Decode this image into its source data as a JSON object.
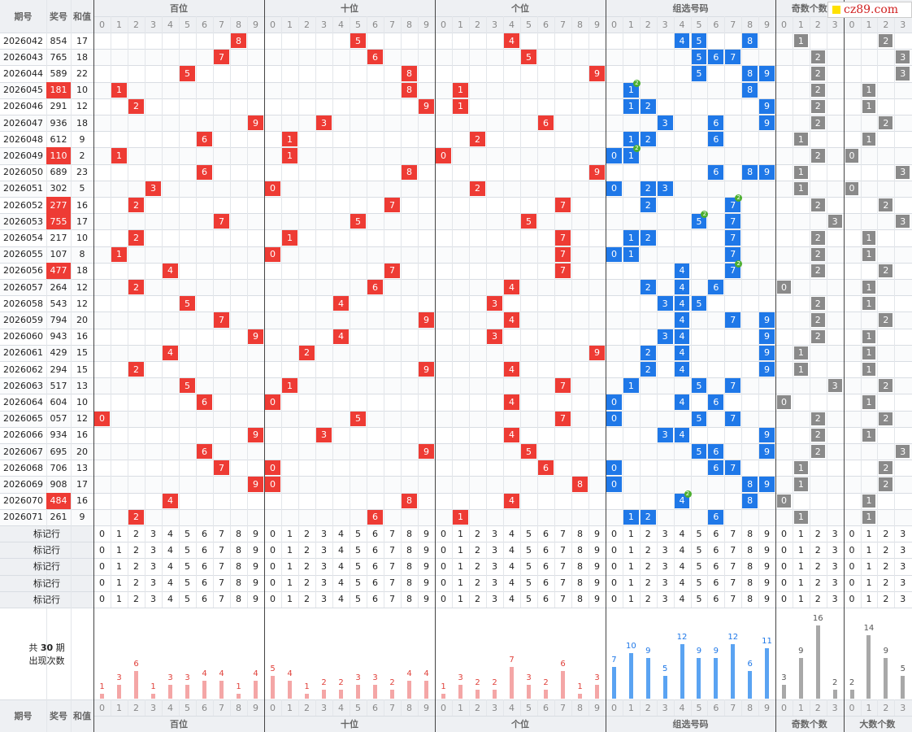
{
  "header": {
    "period": "期号",
    "prize": "奖号",
    "sum": "和值",
    "group_titles": [
      "百位",
      "十位",
      "个位",
      "组选号码",
      "奇数个数",
      "大数个数"
    ]
  },
  "watermark": "cz89.com",
  "mark_row_label": "标记行",
  "stats_prefix": "共",
  "stats_period_count": "30",
  "stats_period_unit": "期",
  "stats_label": "出现次数",
  "colors": {
    "red": "#ee3b34",
    "blue": "#1f78e8",
    "gray": "#8a8a8a",
    "repeat_badge": "#4caf2e"
  },
  "chart_data": {
    "type": "table",
    "rows": [
      {
        "period": "2026042",
        "number": "854",
        "sum": 17,
        "odd_count": 1,
        "big_count": 2
      },
      {
        "period": "2026043",
        "number": "765",
        "sum": 18,
        "odd_count": 2,
        "big_count": 3
      },
      {
        "period": "2026044",
        "number": "589",
        "sum": 22,
        "odd_count": 2,
        "big_count": 3
      },
      {
        "period": "2026045",
        "number": "181",
        "sum": 10,
        "odd_count": 2,
        "big_count": 1
      },
      {
        "period": "2026046",
        "number": "291",
        "sum": 12,
        "odd_count": 2,
        "big_count": 1
      },
      {
        "period": "2026047",
        "number": "936",
        "sum": 18,
        "odd_count": 2,
        "big_count": 2
      },
      {
        "period": "2026048",
        "number": "612",
        "sum": 9,
        "odd_count": 1,
        "big_count": 1
      },
      {
        "period": "2026049",
        "number": "110",
        "sum": 2,
        "odd_count": 2,
        "big_count": 0
      },
      {
        "period": "2026050",
        "number": "689",
        "sum": 23,
        "odd_count": 1,
        "big_count": 3
      },
      {
        "period": "2026051",
        "number": "302",
        "sum": 5,
        "odd_count": 1,
        "big_count": 0
      },
      {
        "period": "2026052",
        "number": "277",
        "sum": 16,
        "odd_count": 2,
        "big_count": 2
      },
      {
        "period": "2026053",
        "number": "755",
        "sum": 17,
        "odd_count": 3,
        "big_count": 3
      },
      {
        "period": "2026054",
        "number": "217",
        "sum": 10,
        "odd_count": 2,
        "big_count": 1
      },
      {
        "period": "2026055",
        "number": "107",
        "sum": 8,
        "odd_count": 2,
        "big_count": 1
      },
      {
        "period": "2026056",
        "number": "477",
        "sum": 18,
        "odd_count": 2,
        "big_count": 2
      },
      {
        "period": "2026057",
        "number": "264",
        "sum": 12,
        "odd_count": 0,
        "big_count": 1
      },
      {
        "period": "2026058",
        "number": "543",
        "sum": 12,
        "odd_count": 2,
        "big_count": 1
      },
      {
        "period": "2026059",
        "number": "794",
        "sum": 20,
        "odd_count": 2,
        "big_count": 2
      },
      {
        "period": "2026060",
        "number": "943",
        "sum": 16,
        "odd_count": 2,
        "big_count": 1
      },
      {
        "period": "2026061",
        "number": "429",
        "sum": 15,
        "odd_count": 1,
        "big_count": 1
      },
      {
        "period": "2026062",
        "number": "294",
        "sum": 15,
        "odd_count": 1,
        "big_count": 1
      },
      {
        "period": "2026063",
        "number": "517",
        "sum": 13,
        "odd_count": 3,
        "big_count": 2
      },
      {
        "period": "2026064",
        "number": "604",
        "sum": 10,
        "odd_count": 0,
        "big_count": 1
      },
      {
        "period": "2026065",
        "number": "057",
        "sum": 12,
        "odd_count": 2,
        "big_count": 2
      },
      {
        "period": "2026066",
        "number": "934",
        "sum": 16,
        "odd_count": 2,
        "big_count": 1
      },
      {
        "period": "2026067",
        "number": "695",
        "sum": 20,
        "odd_count": 2,
        "big_count": 3
      },
      {
        "period": "2026068",
        "number": "706",
        "sum": 13,
        "odd_count": 1,
        "big_count": 2
      },
      {
        "period": "2026069",
        "number": "908",
        "sum": 17,
        "odd_count": 1,
        "big_count": 2
      },
      {
        "period": "2026070",
        "number": "484",
        "sum": 16,
        "odd_count": 0,
        "big_count": 1
      },
      {
        "period": "2026071",
        "number": "261",
        "sum": 9,
        "odd_count": 1,
        "big_count": 1
      }
    ],
    "occurrence_counts": {
      "百位": [
        1,
        3,
        6,
        1,
        3,
        3,
        4,
        4,
        1,
        4
      ],
      "十位": [
        5,
        4,
        1,
        2,
        2,
        3,
        3,
        2,
        4,
        4
      ],
      "个位": [
        1,
        3,
        2,
        2,
        7,
        3,
        2,
        6,
        1,
        3
      ],
      "组选号码": [
        7,
        10,
        9,
        5,
        12,
        9,
        9,
        12,
        6,
        11
      ],
      "奇数个数": [
        3,
        9,
        16,
        2
      ],
      "大数个数": [
        2,
        14,
        9,
        5
      ]
    }
  }
}
